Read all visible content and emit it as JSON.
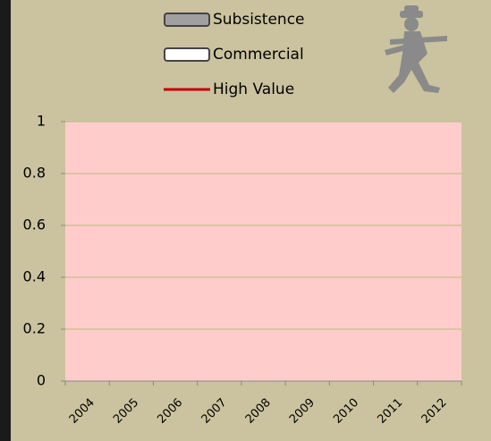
{
  "chart_data": {
    "type": "bar",
    "categories": [
      "2004",
      "2005",
      "2006",
      "2007",
      "2008",
      "2009",
      "2010",
      "2011",
      "2012"
    ],
    "series": [
      {
        "name": "Subsistence",
        "color": "#a0a0a0",
        "kind": "bar",
        "values": [
          null,
          null,
          null,
          null,
          null,
          null,
          null,
          null,
          null
        ]
      },
      {
        "name": "Commercial",
        "color": "#ffffff",
        "kind": "bar",
        "values": [
          null,
          null,
          null,
          null,
          null,
          null,
          null,
          null,
          null
        ]
      },
      {
        "name": "High Value",
        "color": "#c00000",
        "kind": "line",
        "values": [
          null,
          null,
          null,
          null,
          null,
          null,
          null,
          null,
          null
        ]
      }
    ],
    "ylim": [
      0,
      1
    ],
    "yticks": [
      0,
      0.2,
      0.4,
      0.6,
      0.8,
      1
    ],
    "grid": true,
    "legend": "top"
  }
}
